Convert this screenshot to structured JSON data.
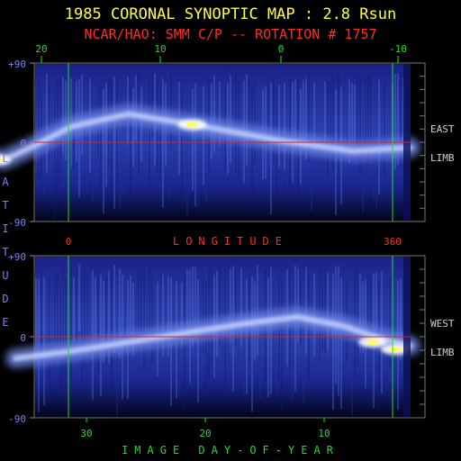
{
  "title": "1985 CORONAL SYNOPTIC MAP : 2.8 Rsun",
  "subtitle": "NCAR/HAO: SMM C/P -- ROTATION # 1757",
  "colors": {
    "title": "#ffff33",
    "subtitle": "#ff2a2a",
    "axis": "#7b7bff",
    "guide": "#22dd22",
    "equator": "#dd2222",
    "limb_label": "#d0d0d0",
    "panel_frame": "#777777"
  },
  "chart_data": [
    {
      "type": "heatmap",
      "panel": "top",
      "side_label": [
        "EAST",
        "LIMB"
      ],
      "ylabel": "LATITUDE",
      "ylim": [
        -90,
        90
      ],
      "y_ticks": [
        "+90",
        "0",
        "-90"
      ],
      "x_top_ticks": [
        "20",
        "10",
        "0",
        "-10"
      ],
      "x_bottom_ticks": [
        "0",
        "360"
      ],
      "xlabel": "LONGITUDE",
      "bright_band": {
        "points": [
          [
            -12,
            -18
          ],
          [
            -8,
            -20
          ],
          [
            0,
            -4
          ],
          [
            10,
            18
          ],
          [
            25,
            32
          ],
          [
            45,
            18
          ],
          [
            65,
            2
          ],
          [
            85,
            -10
          ],
          [
            100,
            -6
          ]
        ],
        "hotspots": [
          [
            -10,
            -20
          ],
          [
            42,
            20
          ]
        ]
      }
    },
    {
      "type": "heatmap",
      "panel": "bottom",
      "side_label": [
        "WEST",
        "LIMB"
      ],
      "ylim": [
        -90,
        90
      ],
      "y_ticks": [
        "+90",
        "0",
        "-90"
      ],
      "x_bottom_ticks": [
        "30",
        "20",
        "10"
      ],
      "xlabel": "IMAGE DAY-OF-YEAR",
      "bright_band": {
        "points": [
          [
            -5,
            -24
          ],
          [
            10,
            -16
          ],
          [
            25,
            -6
          ],
          [
            40,
            4
          ],
          [
            55,
            14
          ],
          [
            70,
            22
          ],
          [
            82,
            12
          ],
          [
            92,
            -2
          ],
          [
            100,
            -10
          ]
        ],
        "hotspots": [
          [
            96,
            -14
          ],
          [
            90,
            -6
          ]
        ]
      }
    }
  ]
}
